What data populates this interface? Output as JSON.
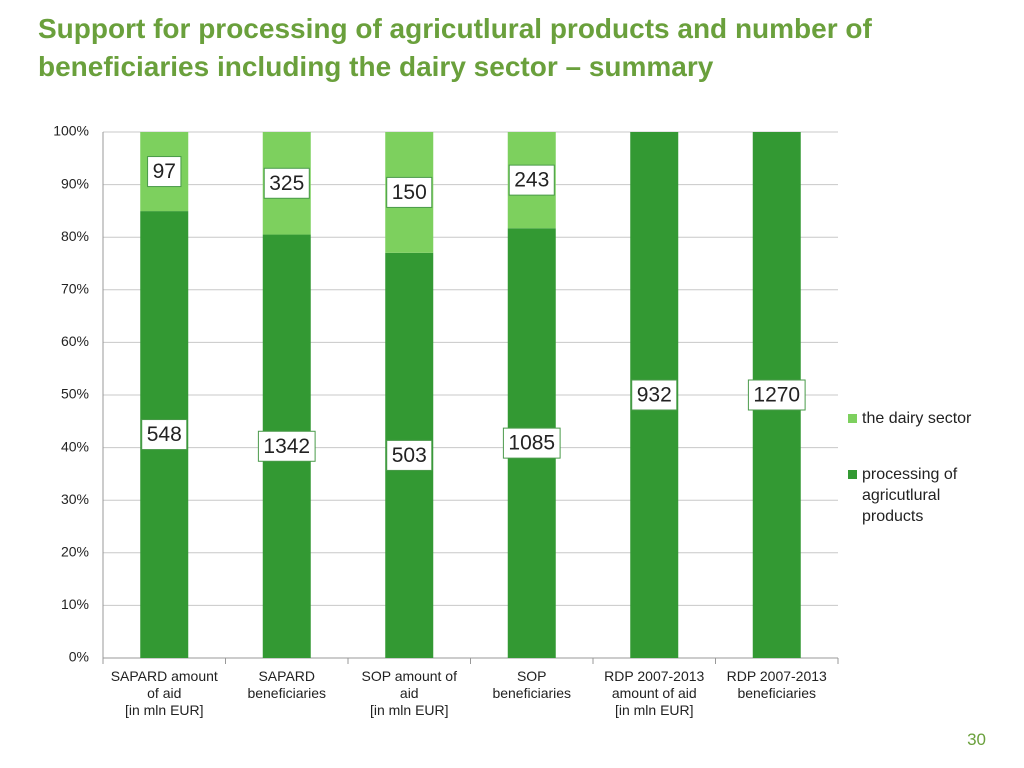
{
  "title": "Support for processing of agricutlural products and number of beneficiaries including the dairy sector – summary",
  "page_number": "30",
  "chart_data": {
    "type": "bar",
    "stacked": "percent",
    "categories": [
      "SAPARD amount\nof aid\n[in mln EUR]",
      "SAPARD\nbeneficiaries",
      "SOP amount  of\naid\n[in mln EUR]",
      "SOP\nbeneficiaries",
      "RDP 2007-2013\namount  of aid\n[in mln EUR]",
      "RDP 2007-2013\nbeneficiaries"
    ],
    "series": [
      {
        "name": "processing of agricutlural products",
        "color": "#339933",
        "values": [
          548,
          1342,
          503,
          1085,
          932,
          1270
        ]
      },
      {
        "name": "the dairy sector",
        "color": "#7dd05e",
        "values": [
          97,
          325,
          150,
          243,
          null,
          null
        ]
      }
    ],
    "ylim": [
      0,
      100
    ],
    "yticks": [
      {
        "value": 0,
        "label": "0%"
      },
      {
        "value": 10,
        "label": "10%"
      },
      {
        "value": 20,
        "label": "20%"
      },
      {
        "value": 30,
        "label": "30%"
      },
      {
        "value": 40,
        "label": "40%"
      },
      {
        "value": 50,
        "label": "50%"
      },
      {
        "value": 60,
        "label": "60%"
      },
      {
        "value": 70,
        "label": "70%"
      },
      {
        "value": 80,
        "label": "80%"
      },
      {
        "value": 90,
        "label": "90%"
      },
      {
        "value": 100,
        "label": "100%"
      }
    ],
    "grid": true,
    "legend": "right"
  }
}
